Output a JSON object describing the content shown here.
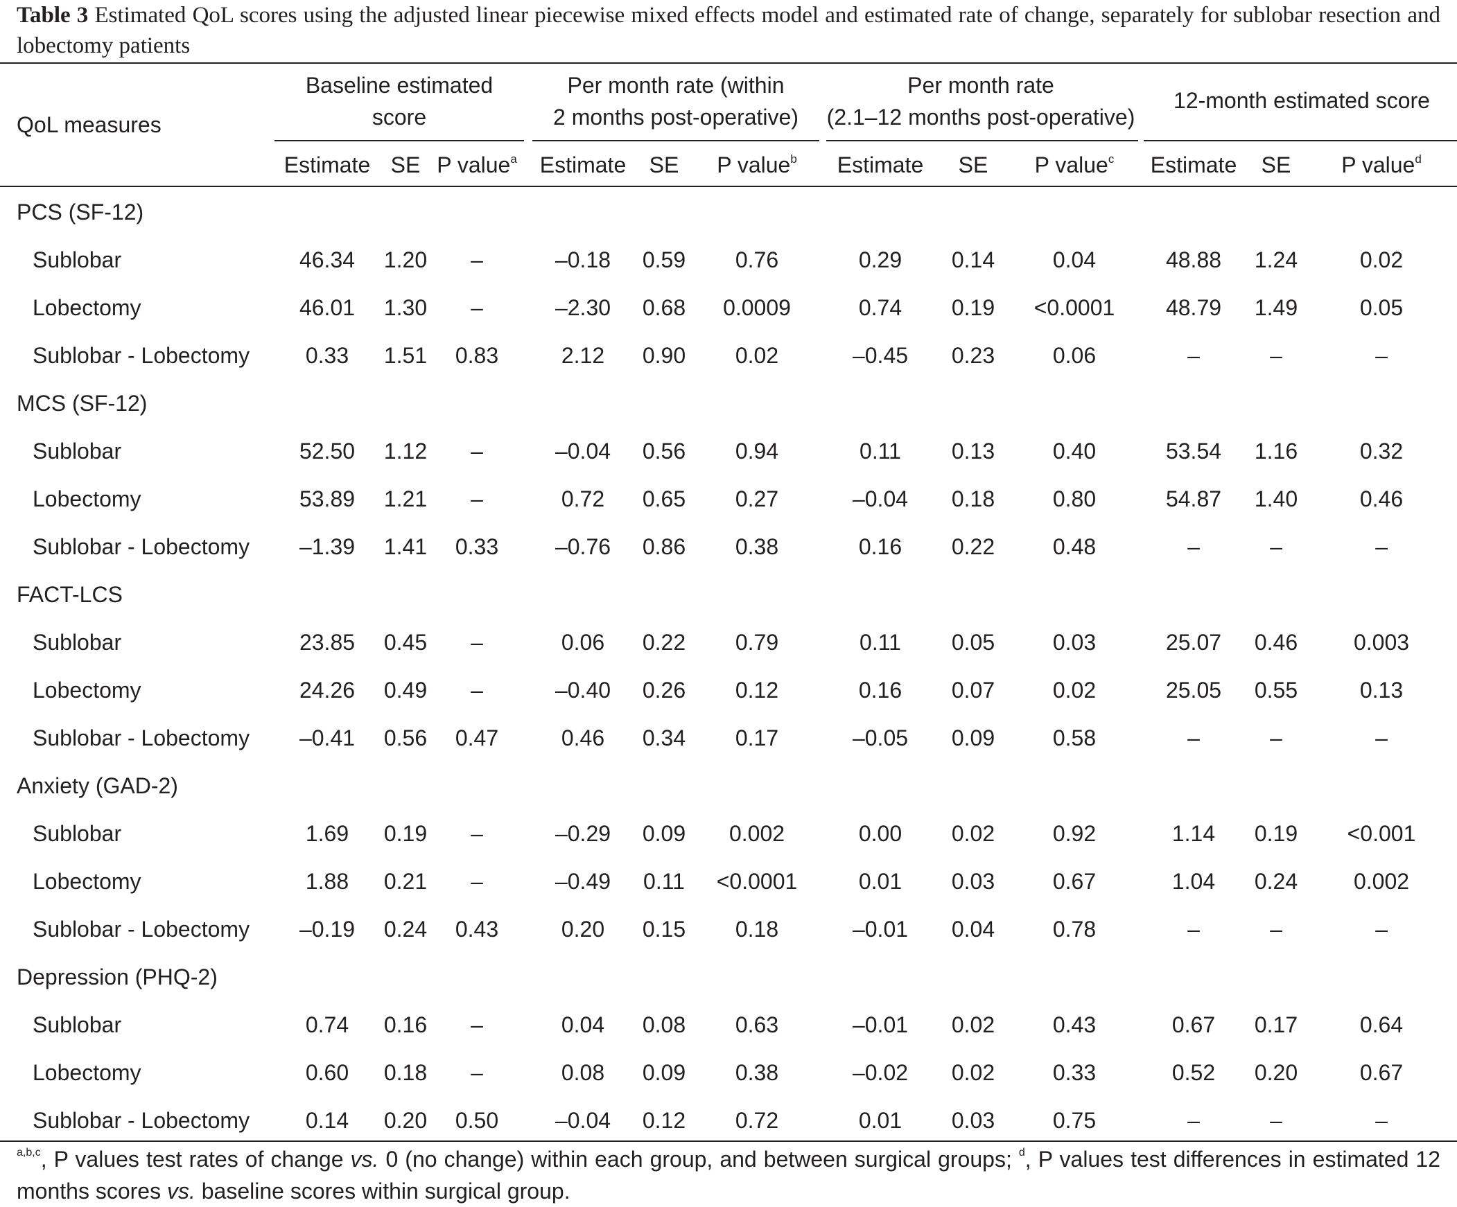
{
  "caption": {
    "label": "Table 3",
    "text": "Estimated QoL scores using the adjusted linear piecewise mixed effects model and estimated rate of change, separately for sublobar resection and lobectomy patients"
  },
  "table": {
    "row_header": "QoL measures",
    "groups": [
      {
        "line1": "Baseline estimated",
        "line2": "score"
      },
      {
        "line1": "Per month rate (within",
        "line2": "2 months post-operative)"
      },
      {
        "line1": "Per month rate",
        "line2": "(2.1–12 months post-operative)"
      },
      {
        "line1": "12-month estimated score",
        "line2": ""
      }
    ],
    "subheaders": {
      "estimate": "Estimate",
      "se": "SE",
      "p": "P value",
      "sup_a": "a",
      "sup_b": "b",
      "sup_c": "c",
      "sup_d": "d"
    },
    "sections": [
      {
        "title": "PCS (SF-12)",
        "rows": [
          {
            "label": "Sublobar",
            "v": [
              "46.34",
              "1.20",
              "–",
              "–0.18",
              "0.59",
              "0.76",
              "0.29",
              "0.14",
              "0.04",
              "48.88",
              "1.24",
              "0.02"
            ]
          },
          {
            "label": "Lobectomy",
            "v": [
              "46.01",
              "1.30",
              "–",
              "–2.30",
              "0.68",
              "0.0009",
              "0.74",
              "0.19",
              "<0.0001",
              "48.79",
              "1.49",
              "0.05"
            ]
          },
          {
            "label": "Sublobar - Lobectomy",
            "v": [
              "0.33",
              "1.51",
              "0.83",
              "2.12",
              "0.90",
              "0.02",
              "–0.45",
              "0.23",
              "0.06",
              "–",
              "–",
              "–"
            ]
          }
        ]
      },
      {
        "title": "MCS (SF-12)",
        "rows": [
          {
            "label": "Sublobar",
            "v": [
              "52.50",
              "1.12",
              "–",
              "–0.04",
              "0.56",
              "0.94",
              "0.11",
              "0.13",
              "0.40",
              "53.54",
              "1.16",
              "0.32"
            ]
          },
          {
            "label": "Lobectomy",
            "v": [
              "53.89",
              "1.21",
              "–",
              "0.72",
              "0.65",
              "0.27",
              "–0.04",
              "0.18",
              "0.80",
              "54.87",
              "1.40",
              "0.46"
            ]
          },
          {
            "label": "Sublobar - Lobectomy",
            "v": [
              "–1.39",
              "1.41",
              "0.33",
              "–0.76",
              "0.86",
              "0.38",
              "0.16",
              "0.22",
              "0.48",
              "–",
              "–",
              "–"
            ]
          }
        ]
      },
      {
        "title": "FACT-LCS",
        "rows": [
          {
            "label": "Sublobar",
            "v": [
              "23.85",
              "0.45",
              "–",
              "0.06",
              "0.22",
              "0.79",
              "0.11",
              "0.05",
              "0.03",
              "25.07",
              "0.46",
              "0.003"
            ]
          },
          {
            "label": "Lobectomy",
            "v": [
              "24.26",
              "0.49",
              "–",
              "–0.40",
              "0.26",
              "0.12",
              "0.16",
              "0.07",
              "0.02",
              "25.05",
              "0.55",
              "0.13"
            ]
          },
          {
            "label": "Sublobar - Lobectomy",
            "v": [
              "–0.41",
              "0.56",
              "0.47",
              "0.46",
              "0.34",
              "0.17",
              "–0.05",
              "0.09",
              "0.58",
              "–",
              "–",
              "–"
            ]
          }
        ]
      },
      {
        "title": "Anxiety (GAD-2)",
        "rows": [
          {
            "label": "Sublobar",
            "v": [
              "1.69",
              "0.19",
              "–",
              "–0.29",
              "0.09",
              "0.002",
              "0.00",
              "0.02",
              "0.92",
              "1.14",
              "0.19",
              "<0.001"
            ]
          },
          {
            "label": "Lobectomy",
            "v": [
              "1.88",
              "0.21",
              "–",
              "–0.49",
              "0.11",
              "<0.0001",
              "0.01",
              "0.03",
              "0.67",
              "1.04",
              "0.24",
              "0.002"
            ]
          },
          {
            "label": "Sublobar - Lobectomy",
            "v": [
              "–0.19",
              "0.24",
              "0.43",
              "0.20",
              "0.15",
              "0.18",
              "–0.01",
              "0.04",
              "0.78",
              "–",
              "–",
              "–"
            ]
          }
        ]
      },
      {
        "title": "Depression (PHQ-2)",
        "rows": [
          {
            "label": "Sublobar",
            "v": [
              "0.74",
              "0.16",
              "–",
              "0.04",
              "0.08",
              "0.63",
              "–0.01",
              "0.02",
              "0.43",
              "0.67",
              "0.17",
              "0.64"
            ]
          },
          {
            "label": "Lobectomy",
            "v": [
              "0.60",
              "0.18",
              "–",
              "0.08",
              "0.09",
              "0.38",
              "–0.02",
              "0.02",
              "0.33",
              "0.52",
              "0.20",
              "0.67"
            ]
          },
          {
            "label": "Sublobar - Lobectomy",
            "v": [
              "0.14",
              "0.20",
              "0.50",
              "–0.04",
              "0.12",
              "0.72",
              "0.01",
              "0.03",
              "0.75",
              "–",
              "–",
              "–"
            ]
          }
        ]
      }
    ]
  },
  "footnote": {
    "sup1": "a,b,c",
    "part1": ", P values test rates of change ",
    "vs1": "vs.",
    "part2": " 0 (no change) within each group, and between surgical groups; ",
    "sup2": "d",
    "part3": ", P values test differences in estimated 12 months scores ",
    "vs2": "vs.",
    "part4": " baseline scores within surgical group."
  }
}
